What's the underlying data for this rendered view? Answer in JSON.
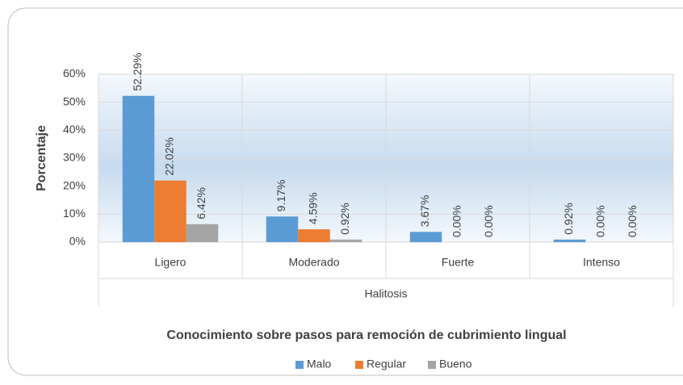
{
  "chart_data": {
    "type": "bar",
    "title": "Conocimiento sobre pasos para remoción de cubrimiento lingual",
    "x_label": "Halitosis",
    "y_label": "Porcentaje",
    "categories": [
      "Ligero",
      "Moderado",
      "Fuerte",
      "Intenso"
    ],
    "series": [
      {
        "name": "Malo",
        "color": "#5b9bd5",
        "values": [
          52.29,
          9.17,
          3.67,
          0.92
        ],
        "value_labels": [
          "52.29%",
          "9.17%",
          "3.67%",
          "0.92%"
        ]
      },
      {
        "name": "Regular",
        "color": "#ed7d31",
        "values": [
          22.02,
          4.59,
          0,
          0
        ],
        "value_labels": [
          "22.02%",
          "4.59%",
          "0.00%",
          "0.00%"
        ]
      },
      {
        "name": "Bueno",
        "color": "#a5a5a5",
        "values": [
          6.42,
          0.92,
          0,
          0
        ],
        "value_labels": [
          "6.42%",
          "0.92%",
          "0.00%",
          "0.00%"
        ]
      }
    ],
    "ylim": [
      0,
      60
    ],
    "yticks": [
      {
        "value": 0,
        "label": "0%"
      },
      {
        "value": 10,
        "label": "10%"
      },
      {
        "value": 20,
        "label": "20%"
      },
      {
        "value": 30,
        "label": "30%"
      },
      {
        "value": 40,
        "label": "40%"
      },
      {
        "value": 50,
        "label": "50%"
      },
      {
        "value": 60,
        "label": "60%"
      }
    ],
    "legend": "bottom"
  }
}
